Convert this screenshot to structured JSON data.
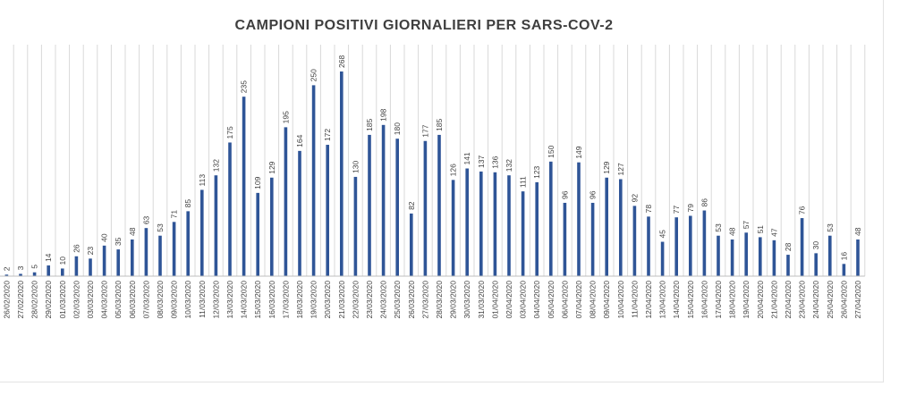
{
  "chart_data": {
    "type": "bar",
    "title": "CAMPIONI POSITIVI GIORNALIERI PER SARS-COV-2",
    "xlabel": "",
    "ylabel": "",
    "ylim": [
      0,
      290
    ],
    "grid": "vertical",
    "bar_color": "#2f5597",
    "categories": [
      "25/02/2020",
      "26/02/2020",
      "27/02/2020",
      "28/02/2020",
      "29/02/2020",
      "01/03/2020",
      "02/03/2020",
      "03/03/2020",
      "04/03/2020",
      "05/03/2020",
      "06/03/2020",
      "07/03/2020",
      "08/03/2020",
      "09/03/2020",
      "10/03/2020",
      "11/03/2020",
      "12/03/2020",
      "13/03/2020",
      "14/03/2020",
      "15/03/2020",
      "16/03/2020",
      "17/03/2020",
      "18/03/2020",
      "19/03/2020",
      "20/03/2020",
      "21/03/2020",
      "22/03/2020",
      "23/03/2020",
      "24/03/2020",
      "25/03/2020",
      "26/03/2020",
      "27/03/2020",
      "28/03/2020",
      "29/03/2020",
      "30/03/2020",
      "31/03/2020",
      "01/04/2020",
      "02/04/2020",
      "03/04/2020",
      "04/04/2020",
      "05/04/2020",
      "06/04/2020",
      "07/04/2020",
      "08/04/2020",
      "09/04/2020",
      "10/04/2020",
      "11/04/2020",
      "12/04/2020",
      "13/04/2020",
      "14/04/2020",
      "15/04/2020",
      "16/04/2020",
      "17/04/2020",
      "18/04/2020",
      "19/04/2020",
      "20/04/2020",
      "21/04/2020",
      "22/04/2020",
      "23/04/2020",
      "24/04/2020",
      "25/04/2020",
      "26/04/2020",
      "27/04/2020"
    ],
    "values": [
      1,
      2,
      3,
      5,
      14,
      10,
      26,
      23,
      40,
      35,
      48,
      63,
      53,
      71,
      85,
      113,
      132,
      175,
      235,
      109,
      129,
      195,
      164,
      250,
      172,
      268,
      130,
      185,
      198,
      180,
      82,
      177,
      185,
      126,
      141,
      137,
      136,
      132,
      111,
      123,
      150,
      96,
      149,
      96,
      129,
      127,
      92,
      78,
      45,
      77,
      79,
      86,
      53,
      48,
      57,
      51,
      47,
      28,
      76,
      30,
      53,
      16,
      48
    ]
  }
}
